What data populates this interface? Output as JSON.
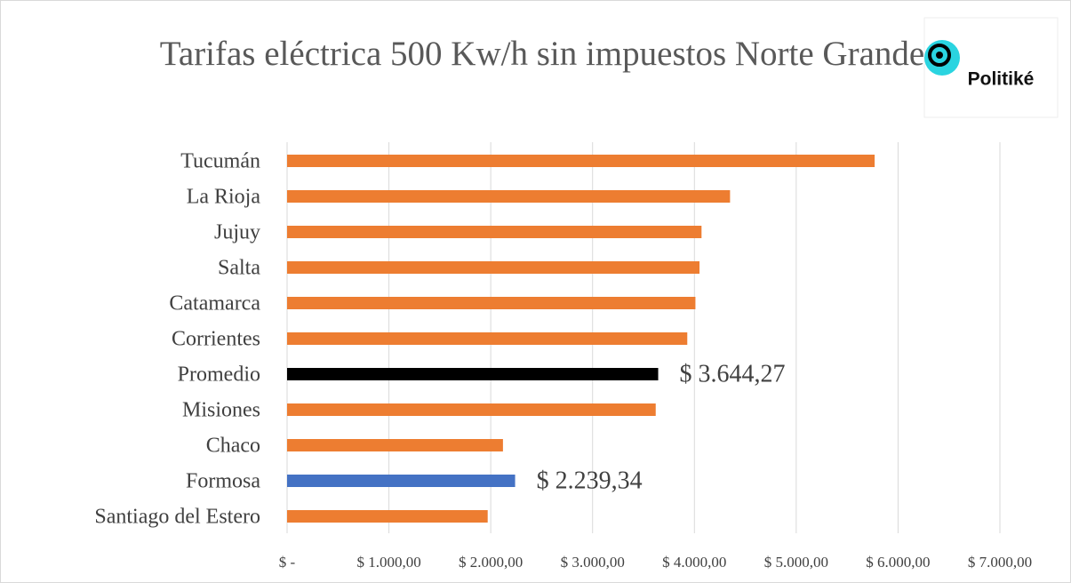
{
  "chart_data": {
    "type": "barh",
    "title": "Tarifas eléctrica 500 Kw/h sin impuestos Norte Grande",
    "logo": "Politiké",
    "categories": [
      "Tucumán",
      "La Rioja",
      "Jujuy",
      "Salta",
      "Catamarca",
      "Corrientes",
      "Promedio",
      "Misiones",
      "Chaco",
      "Formosa",
      "Santiago del Estero"
    ],
    "values": [
      5770,
      4350,
      4070,
      4050,
      4010,
      3930,
      3644.27,
      3620,
      2120,
      2239.34,
      1970
    ],
    "value_labels": [
      null,
      null,
      null,
      null,
      null,
      null,
      "$ 3.644,27",
      null,
      null,
      "$ 2.239,34",
      null
    ],
    "colors": [
      "#ed7d31",
      "#ed7d31",
      "#ed7d31",
      "#ed7d31",
      "#ed7d31",
      "#ed7d31",
      "#000000",
      "#ed7d31",
      "#ed7d31",
      "#4472c4",
      "#ed7d31"
    ],
    "xlim": [
      0,
      7000
    ],
    "xticks": [
      {
        "value": 0,
        "label": "$ -"
      },
      {
        "value": 1000,
        "label": "$ 1.000,00"
      },
      {
        "value": 2000,
        "label": "$ 2.000,00"
      },
      {
        "value": 3000,
        "label": "$ 3.000,00"
      },
      {
        "value": 4000,
        "label": "$ 4.000,00"
      },
      {
        "value": 5000,
        "label": "$ 5.000,00"
      },
      {
        "value": 6000,
        "label": "$ 6.000,00"
      },
      {
        "value": 7000,
        "label": "$ 7.000,00"
      }
    ],
    "grid": true
  }
}
